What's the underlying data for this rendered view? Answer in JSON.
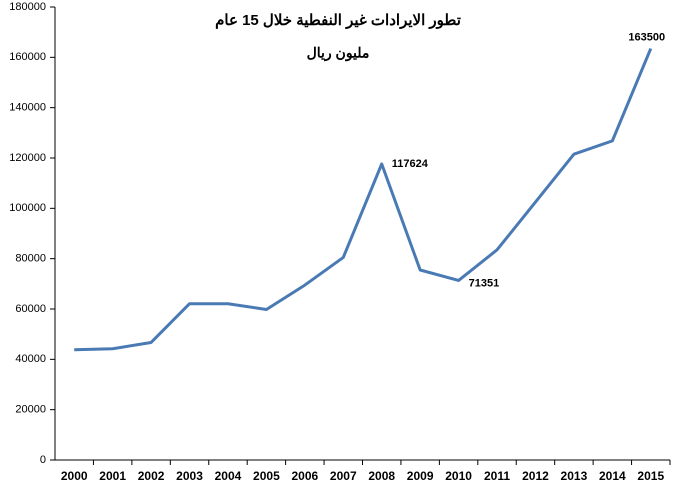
{
  "chart_data": {
    "type": "line",
    "title": "تطور الايرادات غير النفطية خلال 15 عام",
    "subtitle": "مليون ريال",
    "categories": [
      "2000",
      "2001",
      "2002",
      "2003",
      "2004",
      "2005",
      "2006",
      "2007",
      "2008",
      "2009",
      "2010",
      "2011",
      "2012",
      "2013",
      "2014",
      "2015"
    ],
    "values": [
      43800,
      44200,
      46700,
      62100,
      62100,
      59800,
      69500,
      80500,
      117624,
      75500,
      71351,
      83500,
      102500,
      121500,
      126800,
      163500
    ],
    "value_labels": [
      null,
      null,
      null,
      null,
      null,
      null,
      null,
      null,
      "117624",
      null,
      "71351",
      null,
      null,
      null,
      null,
      "163500"
    ],
    "color": "#4a7ab4",
    "ylim": [
      0,
      180000
    ],
    "yticks": [
      0,
      20000,
      40000,
      60000,
      80000,
      100000,
      120000,
      140000,
      160000,
      180000
    ],
    "grid": false
  }
}
